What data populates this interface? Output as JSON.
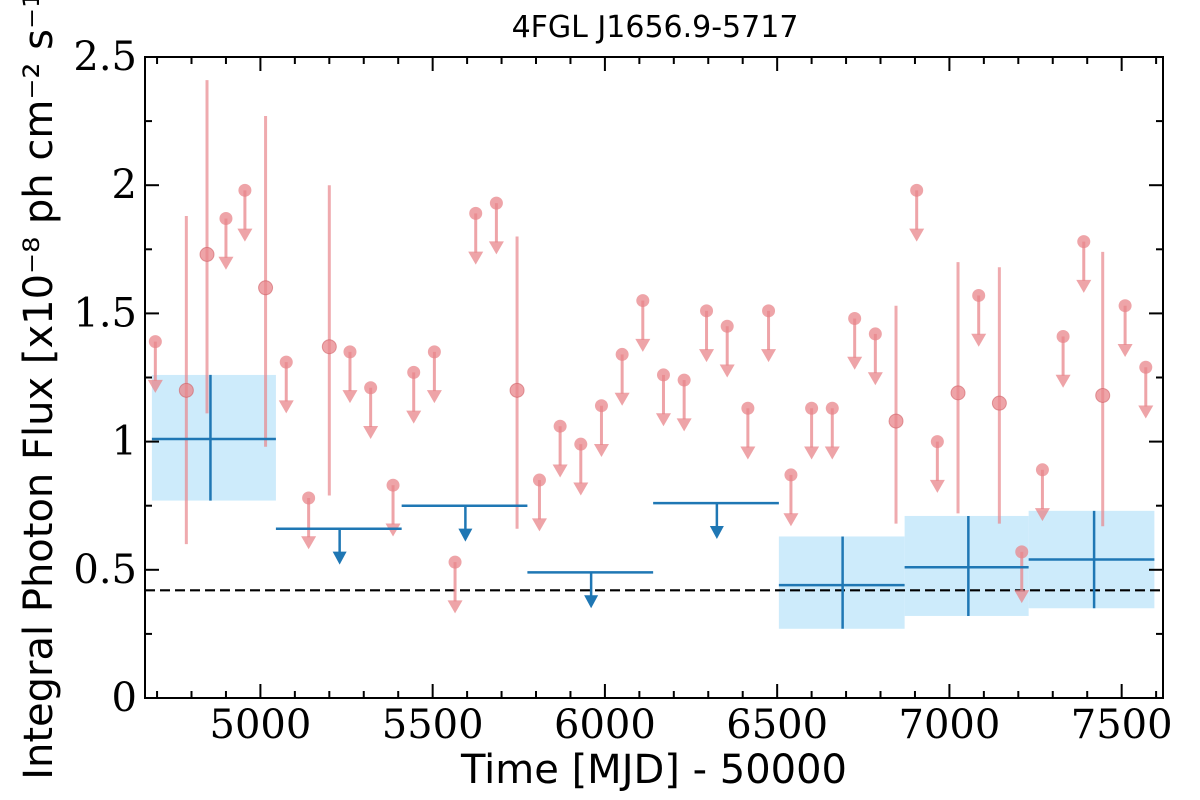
{
  "chart_data": {
    "type": "scatter",
    "title": "4FGL J1656.9-5717",
    "xlabel": "Time [MJD] - 50000",
    "ylabel": "Integral Photon Flux [x10⁻⁸ ph cm⁻² s⁻¹]",
    "xlim": [
      4665,
      7620
    ],
    "ylim": [
      0,
      2.5
    ],
    "xticks": [
      5000,
      5500,
      6000,
      6500,
      7000,
      7500
    ],
    "xtick_labels": [
      "5000",
      "5500",
      "6000",
      "6500",
      "7000",
      "7500"
    ],
    "yticks": [
      0,
      0.5,
      1,
      1.5,
      2,
      2.5
    ],
    "ytick_labels": [
      "0",
      "0.5",
      "1",
      "1.5",
      "2",
      "2.5"
    ],
    "grid": false,
    "colors": {
      "fine": "#e8868b",
      "coarse": "#1f77b4",
      "band": "#cdebfb",
      "reference": "#000000"
    },
    "reference_line": {
      "y": 0.42,
      "style": "dashed"
    },
    "series": [
      {
        "binning": "fine",
        "detections": [
          {
            "x": 4785,
            "y": 1.2,
            "yerr_low": 0.6,
            "yerr_high": 1.88
          },
          {
            "x": 4845,
            "y": 1.73,
            "yerr_low": 1.11,
            "yerr_high": 2.41
          },
          {
            "x": 5015,
            "y": 1.6,
            "yerr_low": 0.98,
            "yerr_high": 2.27
          },
          {
            "x": 5200,
            "y": 1.37,
            "yerr_low": 0.79,
            "yerr_high": 2.0
          },
          {
            "x": 5745,
            "y": 1.2,
            "yerr_low": 0.66,
            "yerr_high": 1.8
          },
          {
            "x": 6845,
            "y": 1.08,
            "yerr_low": 0.68,
            "yerr_high": 1.53
          },
          {
            "x": 7025,
            "y": 1.19,
            "yerr_low": 0.72,
            "yerr_high": 1.7
          },
          {
            "x": 7145,
            "y": 1.15,
            "yerr_low": 0.68,
            "yerr_high": 1.68
          },
          {
            "x": 7445,
            "y": 1.18,
            "yerr_low": 0.67,
            "yerr_high": 1.74
          }
        ],
        "upper_limits": [
          {
            "x": 4695,
            "y": 1.39
          },
          {
            "x": 4900,
            "y": 1.87
          },
          {
            "x": 4955,
            "y": 1.98
          },
          {
            "x": 5075,
            "y": 1.31
          },
          {
            "x": 5140,
            "y": 0.78
          },
          {
            "x": 5260,
            "y": 1.35
          },
          {
            "x": 5320,
            "y": 1.21
          },
          {
            "x": 5385,
            "y": 0.83
          },
          {
            "x": 5445,
            "y": 1.27
          },
          {
            "x": 5505,
            "y": 1.35
          },
          {
            "x": 5565,
            "y": 0.53
          },
          {
            "x": 5625,
            "y": 1.89
          },
          {
            "x": 5685,
            "y": 1.93
          },
          {
            "x": 5810,
            "y": 0.85
          },
          {
            "x": 5870,
            "y": 1.06
          },
          {
            "x": 5930,
            "y": 0.99
          },
          {
            "x": 5990,
            "y": 1.14
          },
          {
            "x": 6050,
            "y": 1.34
          },
          {
            "x": 6110,
            "y": 1.55
          },
          {
            "x": 6170,
            "y": 1.26
          },
          {
            "x": 6230,
            "y": 1.24
          },
          {
            "x": 6295,
            "y": 1.51
          },
          {
            "x": 6355,
            "y": 1.45
          },
          {
            "x": 6415,
            "y": 1.13
          },
          {
            "x": 6475,
            "y": 1.51
          },
          {
            "x": 6540,
            "y": 0.87
          },
          {
            "x": 6600,
            "y": 1.13
          },
          {
            "x": 6660,
            "y": 1.13
          },
          {
            "x": 6725,
            "y": 1.48
          },
          {
            "x": 6785,
            "y": 1.42
          },
          {
            "x": 6905,
            "y": 1.98
          },
          {
            "x": 6965,
            "y": 1.0
          },
          {
            "x": 7085,
            "y": 1.57
          },
          {
            "x": 7210,
            "y": 0.57
          },
          {
            "x": 7270,
            "y": 0.89
          },
          {
            "x": 7330,
            "y": 1.41
          },
          {
            "x": 7390,
            "y": 1.78
          },
          {
            "x": 7510,
            "y": 1.53
          },
          {
            "x": 7570,
            "y": 1.29
          }
        ]
      },
      {
        "binning": "coarse",
        "detections": [
          {
            "x": 4855,
            "y": 1.01,
            "x_low": 4685,
            "x_high": 5045,
            "yerr_low": 0.77,
            "yerr_high": 1.26
          },
          {
            "x": 6690,
            "y": 0.44,
            "x_low": 6505,
            "x_high": 6870,
            "yerr_low": 0.27,
            "yerr_high": 0.63
          },
          {
            "x": 7055,
            "y": 0.51,
            "x_low": 6870,
            "x_high": 7230,
            "yerr_low": 0.32,
            "yerr_high": 0.71
          },
          {
            "x": 7420,
            "y": 0.54,
            "x_low": 7230,
            "x_high": 7595,
            "yerr_low": 0.35,
            "yerr_high": 0.73
          }
        ],
        "upper_limits": [
          {
            "x": 5230,
            "y": 0.66,
            "x_low": 5045,
            "x_high": 5410
          },
          {
            "x": 5595,
            "y": 0.75,
            "x_low": 5410,
            "x_high": 5775
          },
          {
            "x": 5960,
            "y": 0.49,
            "x_low": 5775,
            "x_high": 6140
          },
          {
            "x": 6325,
            "y": 0.76,
            "x_low": 6140,
            "x_high": 6505
          }
        ]
      }
    ]
  }
}
